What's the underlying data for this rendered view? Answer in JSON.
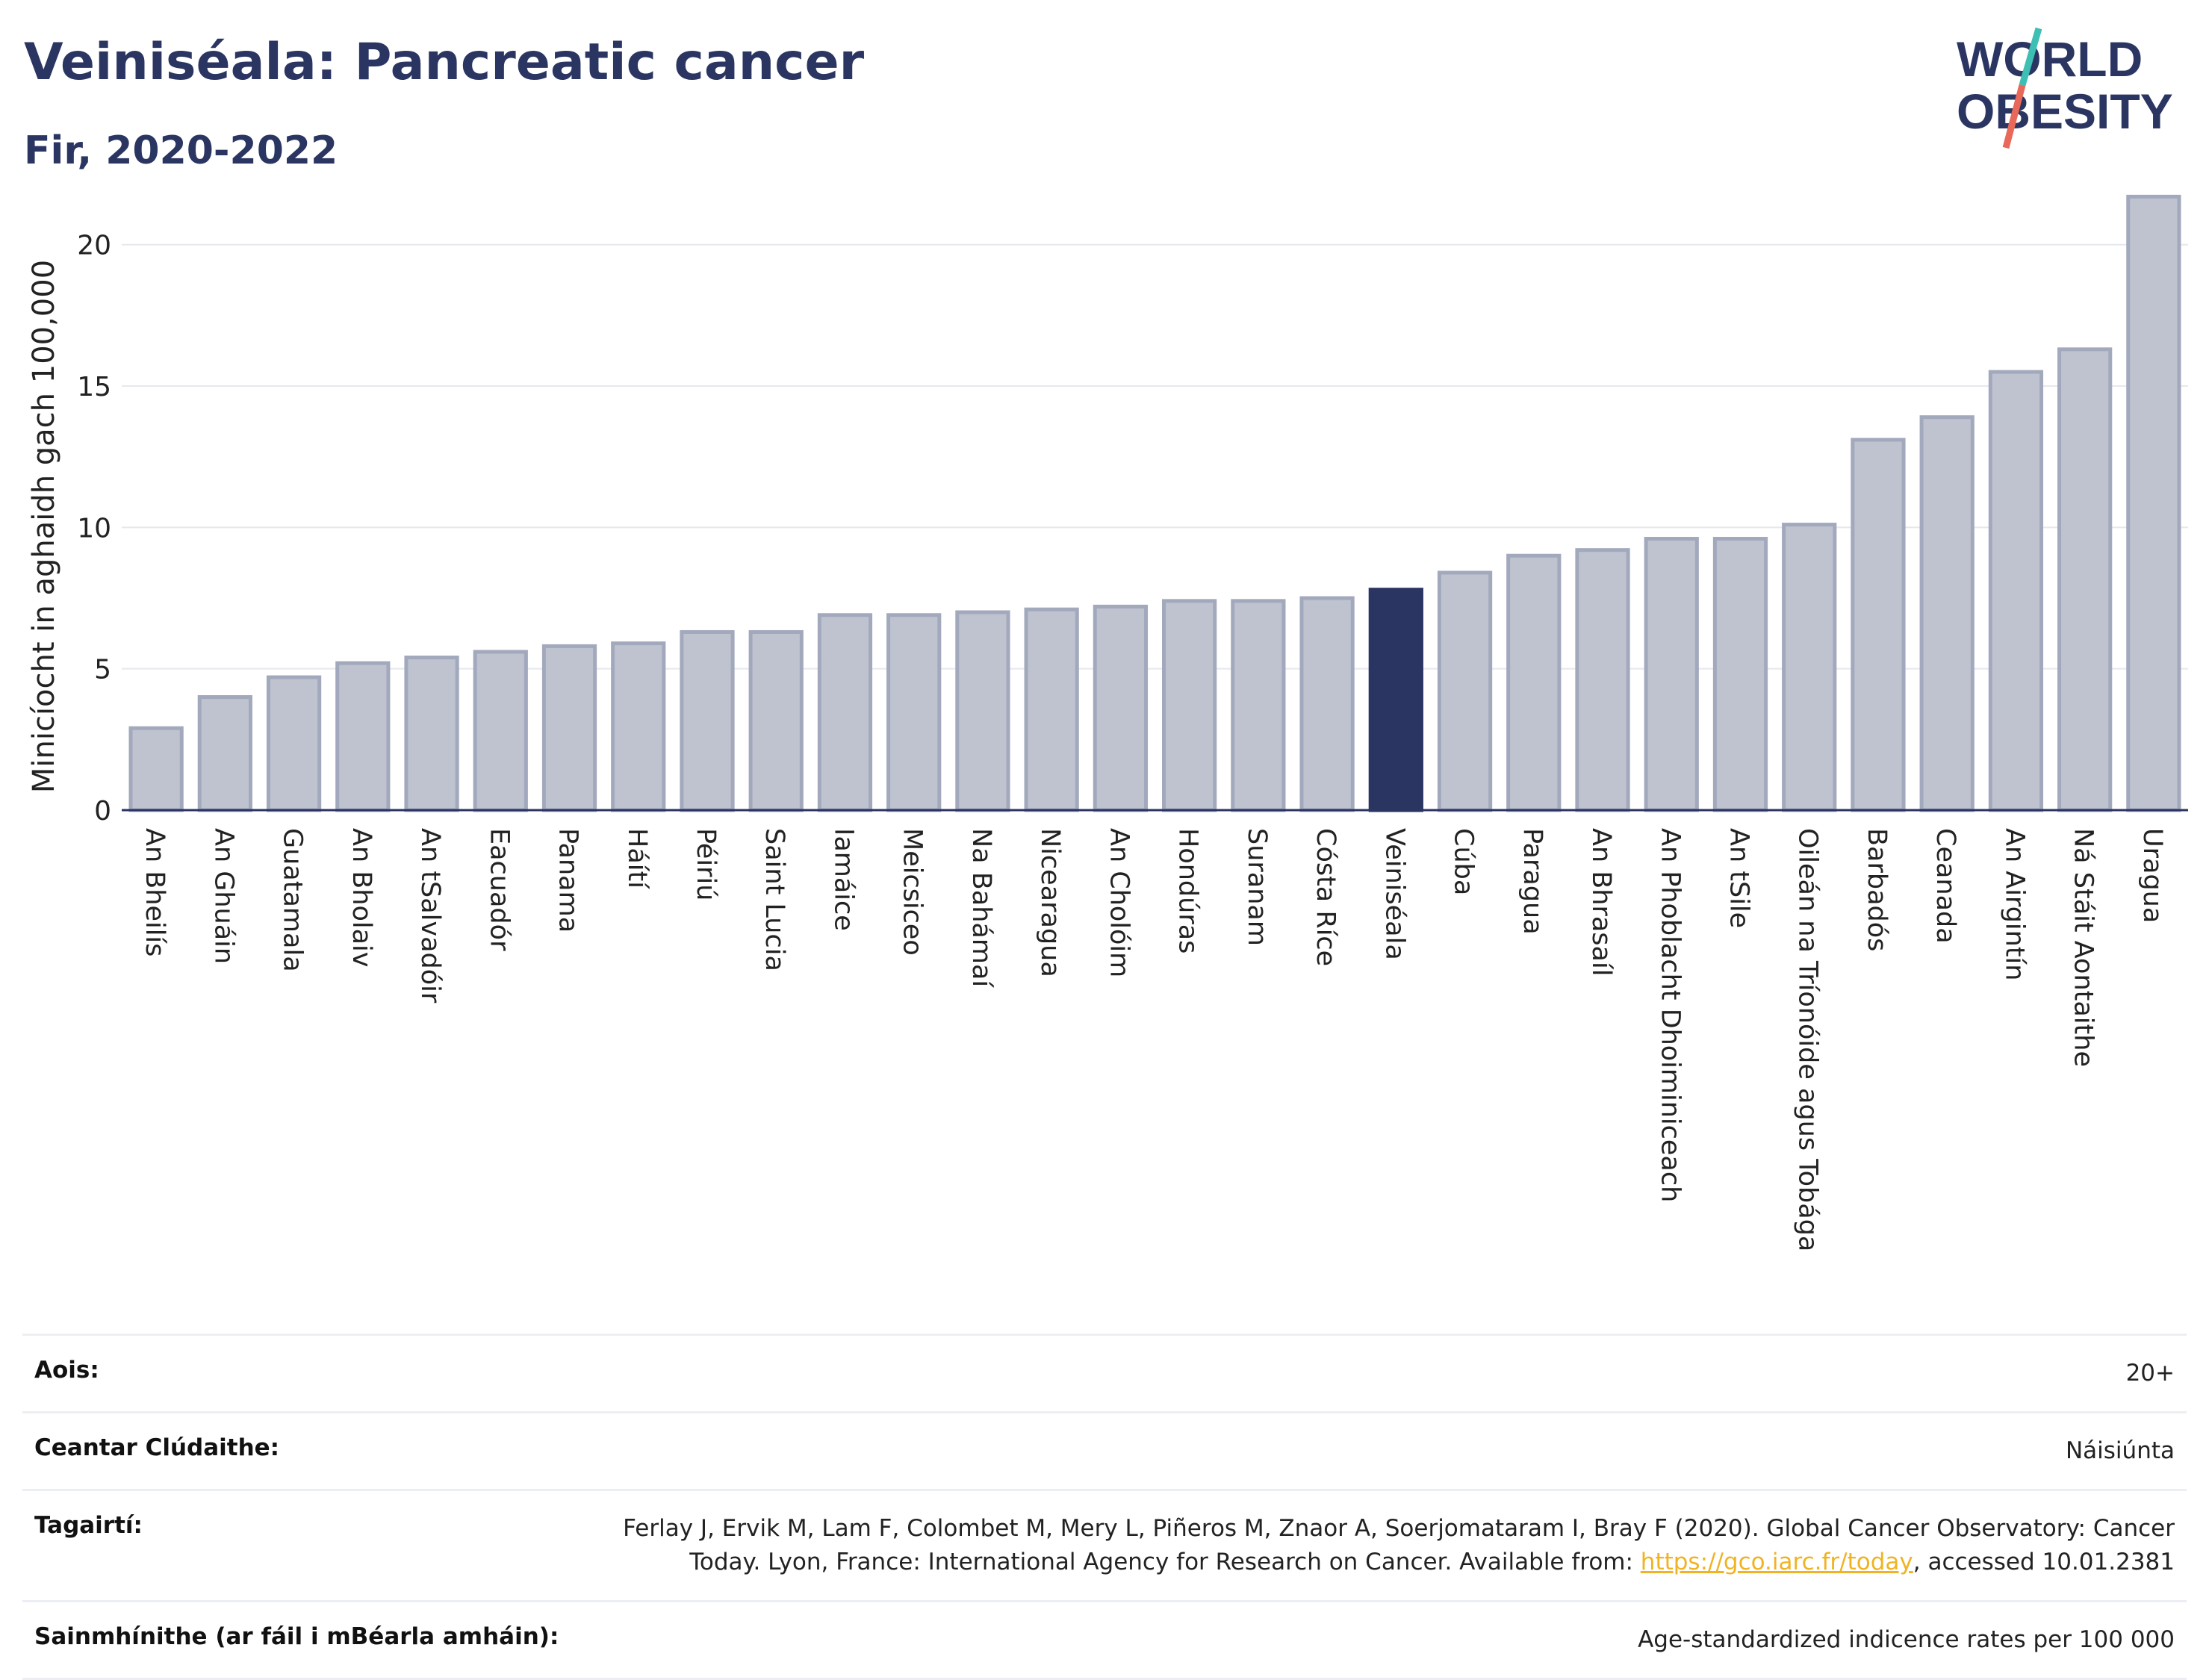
{
  "title": "Veiniséala: Pancreatic cancer",
  "subtitle": "Fir, 2020-2022",
  "logo": {
    "line1": "WORLD",
    "line2": "OBESITY"
  },
  "colors": {
    "bar": "#bfc3d0",
    "bar_border": "#a3a9bd",
    "highlight": "#2b3562",
    "grid": "#e6e8ee",
    "text": "#2b3562"
  },
  "chart_data": {
    "type": "bar",
    "ylabel": "Minicíocht in aghaidh gach 100,000",
    "ylim": [
      0,
      22
    ],
    "yticks": [
      0,
      5,
      10,
      15,
      20
    ],
    "grid": true,
    "highlight": "Veiniséala",
    "categories": [
      "An Bheilís",
      "An Ghuáin",
      "Guatamala",
      "An Bholaiv",
      "An tSalvadóir",
      "Eacuadór",
      "Panama",
      "Háítí",
      "Péiriú",
      "Saint Lucia",
      "Iamáice",
      "Meicsiceo",
      "Na Bahámaí",
      "Nicearagua",
      "An Cholóim",
      "Hondúras",
      "Suranam",
      "Cósta Ríce",
      "Veiniséala",
      "Cúba",
      "Paragua",
      "An Bhrasaíl",
      "An Phoblacht Dhoiminiceach",
      "An tSile",
      "Oileán na Tríonóide agus Tobága",
      "Barbadós",
      "Ceanada",
      "An Airgintín",
      "Ná Stáit Aontaithe",
      "Uragua"
    ],
    "values": [
      2.9,
      4.0,
      4.7,
      5.2,
      5.4,
      5.6,
      5.8,
      5.9,
      6.3,
      6.3,
      6.9,
      6.9,
      7.0,
      7.1,
      7.2,
      7.4,
      7.4,
      7.5,
      7.8,
      8.4,
      9.0,
      9.2,
      9.6,
      9.6,
      10.1,
      13.1,
      13.9,
      15.5,
      16.3,
      21.7
    ]
  },
  "meta": [
    {
      "label": "Aois:",
      "value": "20+"
    },
    {
      "label": "Ceantar Clúdaithe:",
      "value": "Náisiúnta"
    },
    {
      "label": "Tagairtí:",
      "value_pre": "Ferlay J, Ervik M, Lam F, Colombet M, Mery L, Piñeros M, Znaor A, Soerjomataram I, Bray F (2020). Global Cancer Observatory: Cancer Today. Lyon, France: International Agency for Research on Cancer. Available from: ",
      "link": "https://gco.iarc.fr/today",
      "value_post": ", accessed 10.01.2381"
    },
    {
      "label": "Sainmhínithe (ar fáil i mBéarla amháin):",
      "value": "Age-standardized indicence rates per 100 000"
    }
  ]
}
